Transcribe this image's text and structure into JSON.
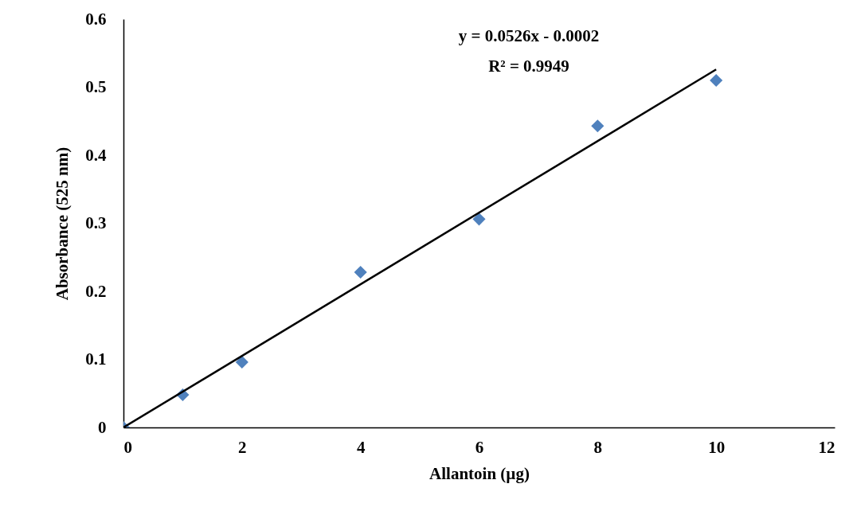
{
  "chart_data": {
    "type": "scatter",
    "xlabel": "Allantoin (µg)",
    "ylabel": "Absorbance (525 nm)",
    "grid": false,
    "xlim": [
      0,
      12
    ],
    "xticks": [
      0,
      2,
      4,
      6,
      8,
      10,
      12
    ],
    "ylim": [
      0,
      0.6
    ],
    "yticks": [
      0,
      0.1,
      0.2,
      0.3,
      0.4,
      0.5,
      0.6
    ],
    "series": [
      {
        "marker": "diamond",
        "color": "#4f81bd",
        "x": [
          0,
          1,
          2,
          4,
          6,
          8,
          10
        ],
        "values": [
          0,
          0.048,
          0.096,
          0.228,
          0.306,
          0.443,
          0.51
        ]
      },
      {
        "type": "line",
        "color": "#000000",
        "x": [
          0,
          10
        ],
        "values": [
          0,
          0.526
        ]
      }
    ],
    "annotations": [
      "y = 0.0526x  - 0.0002",
      "R² = 0.9949"
    ]
  }
}
